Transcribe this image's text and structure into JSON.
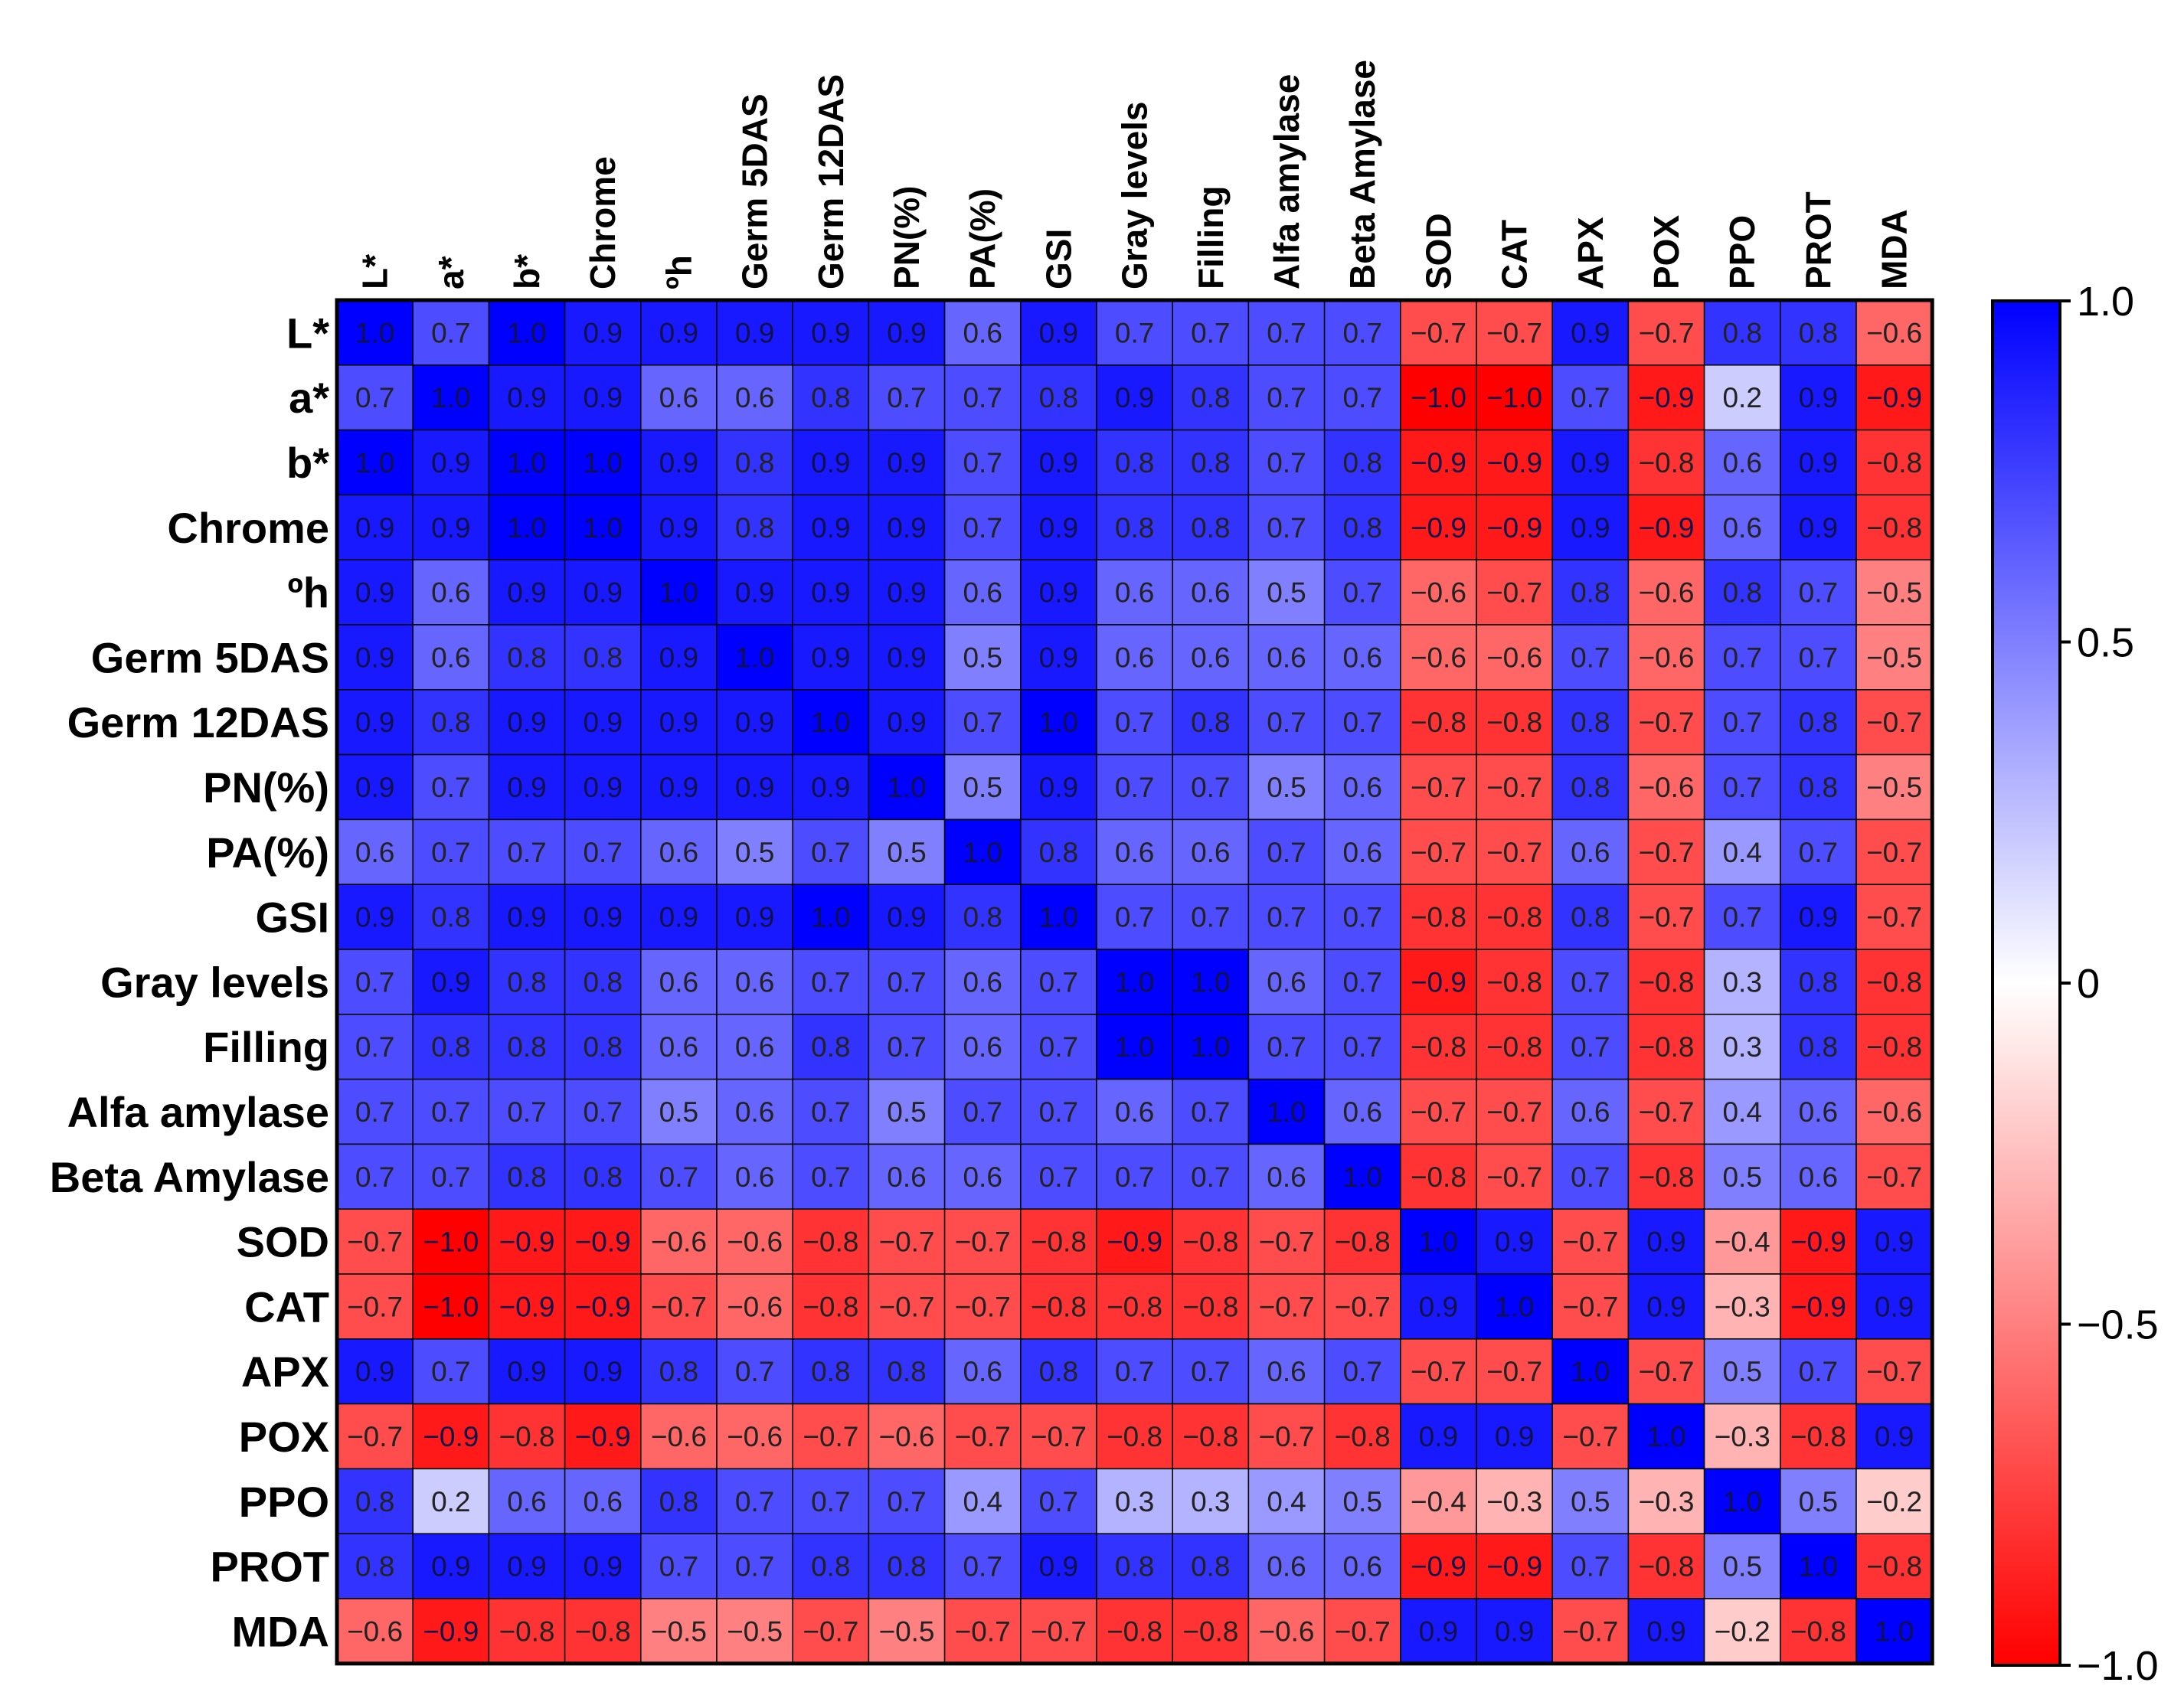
{
  "chart_data": {
    "type": "heatmap",
    "title": "",
    "xlabel": "",
    "ylabel": "",
    "variables": [
      "L*",
      "a*",
      "b*",
      "Chrome",
      "ºh",
      "Germ 5DAS",
      "Germ 12DAS",
      "PN(%)",
      "PA(%)",
      "GSI",
      "Gray levels",
      "Filling",
      "Alfa amylase",
      "Beta Amylase",
      "SOD",
      "CAT",
      "APX",
      "POX",
      "PPO",
      "PROT",
      "MDA"
    ],
    "matrix": [
      [
        1.0,
        0.7,
        1.0,
        0.9,
        0.9,
        0.9,
        0.9,
        0.9,
        0.6,
        0.9,
        0.7,
        0.7,
        0.7,
        0.7,
        -0.7,
        -0.7,
        0.9,
        -0.7,
        0.8,
        0.8,
        -0.6
      ],
      [
        0.7,
        1.0,
        0.9,
        0.9,
        0.6,
        0.6,
        0.8,
        0.7,
        0.7,
        0.8,
        0.9,
        0.8,
        0.7,
        0.7,
        -1.0,
        -1.0,
        0.7,
        -0.9,
        0.2,
        0.9,
        -0.9
      ],
      [
        1.0,
        0.9,
        1.0,
        1.0,
        0.9,
        0.8,
        0.9,
        0.9,
        0.7,
        0.9,
        0.8,
        0.8,
        0.7,
        0.8,
        -0.9,
        -0.9,
        0.9,
        -0.8,
        0.6,
        0.9,
        -0.8
      ],
      [
        0.9,
        0.9,
        1.0,
        1.0,
        0.9,
        0.8,
        0.9,
        0.9,
        0.7,
        0.9,
        0.8,
        0.8,
        0.7,
        0.8,
        -0.9,
        -0.9,
        0.9,
        -0.9,
        0.6,
        0.9,
        -0.8
      ],
      [
        0.9,
        0.6,
        0.9,
        0.9,
        1.0,
        0.9,
        0.9,
        0.9,
        0.6,
        0.9,
        0.6,
        0.6,
        0.5,
        0.7,
        -0.6,
        -0.7,
        0.8,
        -0.6,
        0.8,
        0.7,
        -0.5
      ],
      [
        0.9,
        0.6,
        0.8,
        0.8,
        0.9,
        1.0,
        0.9,
        0.9,
        0.5,
        0.9,
        0.6,
        0.6,
        0.6,
        0.6,
        -0.6,
        -0.6,
        0.7,
        -0.6,
        0.7,
        0.7,
        -0.5
      ],
      [
        0.9,
        0.8,
        0.9,
        0.9,
        0.9,
        0.9,
        1.0,
        0.9,
        0.7,
        1.0,
        0.7,
        0.8,
        0.7,
        0.7,
        -0.8,
        -0.8,
        0.8,
        -0.7,
        0.7,
        0.8,
        -0.7
      ],
      [
        0.9,
        0.7,
        0.9,
        0.9,
        0.9,
        0.9,
        0.9,
        1.0,
        0.5,
        0.9,
        0.7,
        0.7,
        0.5,
        0.6,
        -0.7,
        -0.7,
        0.8,
        -0.6,
        0.7,
        0.8,
        -0.5
      ],
      [
        0.6,
        0.7,
        0.7,
        0.7,
        0.6,
        0.5,
        0.7,
        0.5,
        1.0,
        0.8,
        0.6,
        0.6,
        0.7,
        0.6,
        -0.7,
        -0.7,
        0.6,
        -0.7,
        0.4,
        0.7,
        -0.7
      ],
      [
        0.9,
        0.8,
        0.9,
        0.9,
        0.9,
        0.9,
        1.0,
        0.9,
        0.8,
        1.0,
        0.7,
        0.7,
        0.7,
        0.7,
        -0.8,
        -0.8,
        0.8,
        -0.7,
        0.7,
        0.9,
        -0.7
      ],
      [
        0.7,
        0.9,
        0.8,
        0.8,
        0.6,
        0.6,
        0.7,
        0.7,
        0.6,
        0.7,
        1.0,
        1.0,
        0.6,
        0.7,
        -0.9,
        -0.8,
        0.7,
        -0.8,
        0.3,
        0.8,
        -0.8
      ],
      [
        0.7,
        0.8,
        0.8,
        0.8,
        0.6,
        0.6,
        0.8,
        0.7,
        0.6,
        0.7,
        1.0,
        1.0,
        0.7,
        0.7,
        -0.8,
        -0.8,
        0.7,
        -0.8,
        0.3,
        0.8,
        -0.8
      ],
      [
        0.7,
        0.7,
        0.7,
        0.7,
        0.5,
        0.6,
        0.7,
        0.5,
        0.7,
        0.7,
        0.6,
        0.7,
        1.0,
        0.6,
        -0.7,
        -0.7,
        0.6,
        -0.7,
        0.4,
        0.6,
        -0.6
      ],
      [
        0.7,
        0.7,
        0.8,
        0.8,
        0.7,
        0.6,
        0.7,
        0.6,
        0.6,
        0.7,
        0.7,
        0.7,
        0.6,
        1.0,
        -0.8,
        -0.7,
        0.7,
        -0.8,
        0.5,
        0.6,
        -0.7
      ],
      [
        -0.7,
        -1.0,
        -0.9,
        -0.9,
        -0.6,
        -0.6,
        -0.8,
        -0.7,
        -0.7,
        -0.8,
        -0.9,
        -0.8,
        -0.7,
        -0.8,
        1.0,
        0.9,
        -0.7,
        0.9,
        -0.4,
        -0.9,
        0.9
      ],
      [
        -0.7,
        -1.0,
        -0.9,
        -0.9,
        -0.7,
        -0.6,
        -0.8,
        -0.7,
        -0.7,
        -0.8,
        -0.8,
        -0.8,
        -0.7,
        -0.7,
        0.9,
        1.0,
        -0.7,
        0.9,
        -0.3,
        -0.9,
        0.9
      ],
      [
        0.9,
        0.7,
        0.9,
        0.9,
        0.8,
        0.7,
        0.8,
        0.8,
        0.6,
        0.8,
        0.7,
        0.7,
        0.6,
        0.7,
        -0.7,
        -0.7,
        1.0,
        -0.7,
        0.5,
        0.7,
        -0.7
      ],
      [
        -0.7,
        -0.9,
        -0.8,
        -0.9,
        -0.6,
        -0.6,
        -0.7,
        -0.6,
        -0.7,
        -0.7,
        -0.8,
        -0.8,
        -0.7,
        -0.8,
        0.9,
        0.9,
        -0.7,
        1.0,
        -0.3,
        -0.8,
        0.9
      ],
      [
        0.8,
        0.2,
        0.6,
        0.6,
        0.8,
        0.7,
        0.7,
        0.7,
        0.4,
        0.7,
        0.3,
        0.3,
        0.4,
        0.5,
        -0.4,
        -0.3,
        0.5,
        -0.3,
        1.0,
        0.5,
        -0.2
      ],
      [
        0.8,
        0.9,
        0.9,
        0.9,
        0.7,
        0.7,
        0.8,
        0.8,
        0.7,
        0.9,
        0.8,
        0.8,
        0.6,
        0.6,
        -0.9,
        -0.9,
        0.7,
        -0.8,
        0.5,
        1.0,
        -0.8
      ],
      [
        -0.6,
        -0.9,
        -0.8,
        -0.8,
        -0.5,
        -0.5,
        -0.7,
        -0.5,
        -0.7,
        -0.7,
        -0.8,
        -0.8,
        -0.6,
        -0.7,
        0.9,
        0.9,
        -0.7,
        0.9,
        -0.2,
        -0.8,
        1.0
      ]
    ],
    "colorbar": {
      "min": -1.0,
      "max": 1.0,
      "ticks": [
        1.0,
        0.5,
        0,
        -0.5,
        -1.0
      ],
      "tick_labels": [
        "1.0",
        "0.5",
        "0",
        "−0.5",
        "−1.0"
      ],
      "colors": {
        "negative": "#ff0000",
        "zero": "#ffffff",
        "positive": "#0000ff"
      }
    }
  }
}
